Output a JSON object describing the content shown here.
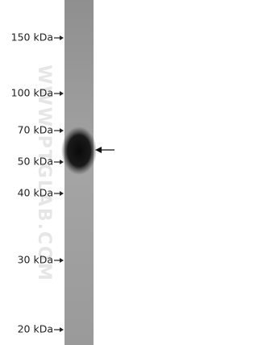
{
  "markers": [
    {
      "label": "150 kDa"
    },
    {
      "label": "100 kDa"
    },
    {
      "label": "70 kDa"
    },
    {
      "label": "50 kDa"
    },
    {
      "label": "40 kDa"
    },
    {
      "label": "30 kDa"
    },
    {
      "label": "20 kDa"
    }
  ],
  "watermark": "WWW.PTGLAB.COM"
}
